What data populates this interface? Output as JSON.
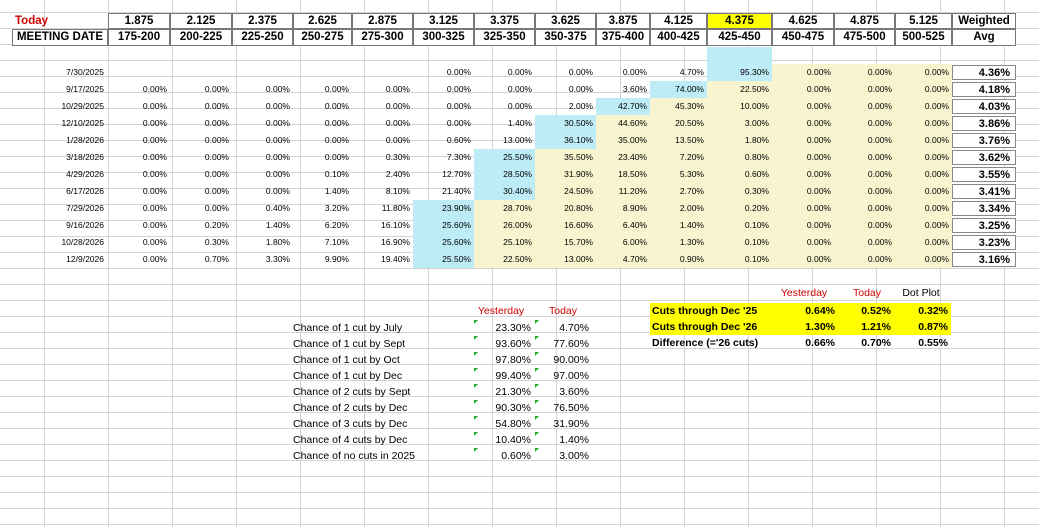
{
  "header": {
    "today_label": "Today",
    "meeting_label": "MEETING DATE",
    "weighted_label": "Weighted",
    "avg_label": "Avg",
    "rates": [
      "1.875",
      "2.125",
      "2.375",
      "2.625",
      "2.875",
      "3.125",
      "3.375",
      "3.625",
      "3.875",
      "4.125",
      "4.375",
      "4.625",
      "4.875",
      "5.125"
    ],
    "ranges": [
      "175-200",
      "200-225",
      "225-250",
      "250-275",
      "275-300",
      "300-325",
      "325-350",
      "350-375",
      "375-400",
      "400-425",
      "425-450",
      "450-475",
      "475-500",
      "500-525"
    ],
    "current_rate_highlight": "#ffff00"
  },
  "rows": [
    {
      "date": "7/30/2025",
      "values": [
        "",
        "",
        "",
        "",
        "",
        "0.00%",
        "0.00%",
        "0.00%",
        "0.00%",
        "4.70%",
        "95.30%",
        "0.00%",
        "0.00%",
        "0.00%"
      ],
      "avg": "4.36%"
    },
    {
      "date": "9/17/2025",
      "values": [
        "0.00%",
        "0.00%",
        "0.00%",
        "0.00%",
        "0.00%",
        "0.00%",
        "0.00%",
        "0.00%",
        "3.60%",
        "74.00%",
        "22.50%",
        "0.00%",
        "0.00%",
        "0.00%"
      ],
      "avg": "4.18%"
    },
    {
      "date": "10/29/2025",
      "values": [
        "0.00%",
        "0.00%",
        "0.00%",
        "0.00%",
        "0.00%",
        "0.00%",
        "0.00%",
        "2.00%",
        "42.70%",
        "45.30%",
        "10.00%",
        "0.00%",
        "0.00%",
        "0.00%"
      ],
      "avg": "4.03%"
    },
    {
      "date": "12/10/2025",
      "values": [
        "0.00%",
        "0.00%",
        "0.00%",
        "0.00%",
        "0.00%",
        "0.00%",
        "1.40%",
        "30.50%",
        "44.60%",
        "20.50%",
        "3.00%",
        "0.00%",
        "0.00%",
        "0.00%"
      ],
      "avg": "3.86%"
    },
    {
      "date": "1/28/2026",
      "values": [
        "0.00%",
        "0.00%",
        "0.00%",
        "0.00%",
        "0.00%",
        "0.60%",
        "13.00%",
        "36.10%",
        "35.00%",
        "13.50%",
        "1.80%",
        "0.00%",
        "0.00%",
        "0.00%"
      ],
      "avg": "3.76%"
    },
    {
      "date": "3/18/2026",
      "values": [
        "0.00%",
        "0.00%",
        "0.00%",
        "0.00%",
        "0.30%",
        "7.30%",
        "25.50%",
        "35.50%",
        "23.40%",
        "7.20%",
        "0.80%",
        "0.00%",
        "0.00%",
        "0.00%"
      ],
      "avg": "3.62%"
    },
    {
      "date": "4/29/2026",
      "values": [
        "0.00%",
        "0.00%",
        "0.00%",
        "0.10%",
        "2.40%",
        "12.70%",
        "28.50%",
        "31.90%",
        "18.50%",
        "5.30%",
        "0.60%",
        "0.00%",
        "0.00%",
        "0.00%"
      ],
      "avg": "3.55%"
    },
    {
      "date": "6/17/2026",
      "values": [
        "0.00%",
        "0.00%",
        "0.00%",
        "1.40%",
        "8.10%",
        "21.40%",
        "30.40%",
        "24.50%",
        "11.20%",
        "2.70%",
        "0.30%",
        "0.00%",
        "0.00%",
        "0.00%"
      ],
      "avg": "3.41%"
    },
    {
      "date": "7/29/2026",
      "values": [
        "0.00%",
        "0.00%",
        "0.40%",
        "3.20%",
        "11.80%",
        "23.90%",
        "28.70%",
        "20.80%",
        "8.90%",
        "2.00%",
        "0.20%",
        "0.00%",
        "0.00%",
        "0.00%"
      ],
      "avg": "3.34%"
    },
    {
      "date": "9/16/2026",
      "values": [
        "0.00%",
        "0.20%",
        "1.40%",
        "6.20%",
        "16.10%",
        "25.60%",
        "26.00%",
        "16.60%",
        "6.40%",
        "1.40%",
        "0.10%",
        "0.00%",
        "0.00%",
        "0.00%"
      ],
      "avg": "3.25%"
    },
    {
      "date": "10/28/2026",
      "values": [
        "0.00%",
        "0.30%",
        "1.80%",
        "7.10%",
        "16.90%",
        "25.60%",
        "25.10%",
        "15.70%",
        "6.00%",
        "1.30%",
        "0.10%",
        "0.00%",
        "0.00%",
        "0.00%"
      ],
      "avg": "3.23%"
    },
    {
      "date": "12/9/2026",
      "values": [
        "0.00%",
        "0.70%",
        "3.30%",
        "9.90%",
        "19.40%",
        "25.50%",
        "22.50%",
        "13.00%",
        "4.70%",
        "0.90%",
        "0.10%",
        "0.00%",
        "0.00%",
        "0.00%"
      ],
      "avg": "3.16%"
    }
  ],
  "highlights": {
    "blue_cells": [
      [
        0,
        10
      ],
      [
        1,
        9
      ],
      [
        2,
        8
      ],
      [
        3,
        7
      ],
      [
        4,
        7
      ],
      [
        5,
        6
      ],
      [
        6,
        6
      ],
      [
        7,
        6
      ],
      [
        8,
        5
      ],
      [
        9,
        5
      ],
      [
        10,
        5
      ],
      [
        11,
        5
      ]
    ],
    "yellow_start_col": [
      11,
      10,
      9,
      8,
      8,
      7,
      7,
      7,
      6,
      6,
      6,
      6
    ],
    "blue_color": "#bdebf6",
    "yellow_color": "#f7f4cf"
  },
  "cuts_table": {
    "yesterday_label": "Yesterday",
    "today_label": "Today",
    "rows": [
      {
        "label": "Chance of 1 cut by July",
        "yesterday": "23.30%",
        "today": "4.70%"
      },
      {
        "label": "Chance of 1 cut by Sept",
        "yesterday": "93.60%",
        "today": "77.60%"
      },
      {
        "label": "Chance of 1 cut by Oct",
        "yesterday": "97.80%",
        "today": "90.00%"
      },
      {
        "label": "Chance of 1 cut by Dec",
        "yesterday": "99.40%",
        "today": "97.00%"
      },
      {
        "label": "Chance of 2 cuts by Sept",
        "yesterday": "21.30%",
        "today": "3.60%"
      },
      {
        "label": "Chance of 2 cuts by Dec",
        "yesterday": "90.30%",
        "today": "76.50%"
      },
      {
        "label": "Chance of 3 cuts by Dec",
        "yesterday": "54.80%",
        "today": "31.90%"
      },
      {
        "label": "Chance of 4 cuts by Dec",
        "yesterday": "10.40%",
        "today": "1.40%"
      },
      {
        "label": "Chance of no cuts in 2025",
        "yesterday": "0.60%",
        "today": "3.00%"
      }
    ]
  },
  "summary_table": {
    "yesterday_label": "Yesterday",
    "today_label": "Today",
    "dotplot_label": "Dot Plot",
    "rows": [
      {
        "label": "Cuts through Dec '25",
        "yesterday": "0.64%",
        "today": "0.52%",
        "dotplot": "0.32%",
        "highlight": true
      },
      {
        "label": "Cuts through Dec '26",
        "yesterday": "1.30%",
        "today": "1.21%",
        "dotplot": "0.87%",
        "highlight": true
      },
      {
        "label": "Difference (='26 cuts)",
        "yesterday": "0.66%",
        "today": "0.70%",
        "dotplot": "0.55%",
        "highlight": false
      }
    ]
  }
}
